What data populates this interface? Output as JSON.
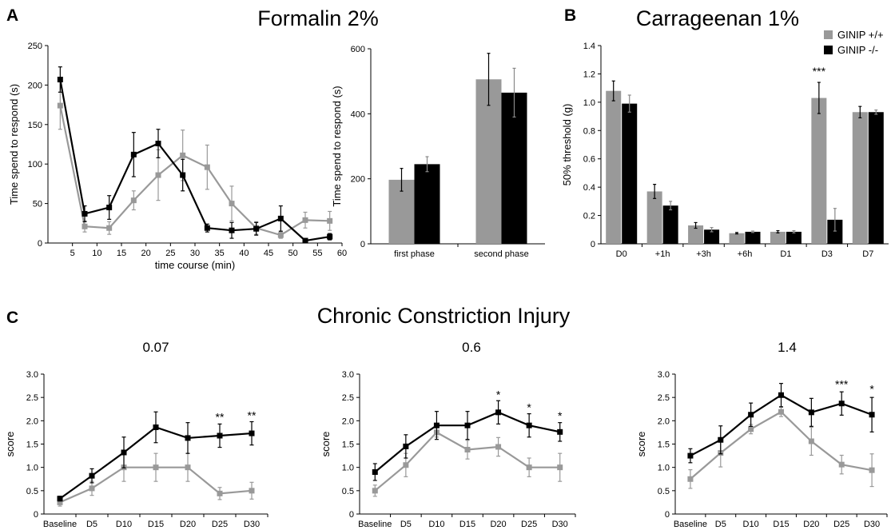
{
  "colors": {
    "wildtype": "#999999",
    "knockout": "#000000"
  },
  "panels": {
    "a_letter": "A",
    "a_title": "Formalin 2%",
    "b_letter": "B",
    "b_title": "Carrageenan 1%",
    "c_letter": "C",
    "c_title": "Chronic Constriction Injury"
  },
  "legend": [
    {
      "label": "GINIP +/+",
      "color": "#999999"
    },
    {
      "label": "GINIP -/-",
      "color": "#000000"
    }
  ],
  "chart_data": [
    {
      "id": "formalin_time",
      "type": "line",
      "xlabel": "time course (min)",
      "ylabel": "Time spend to respond (s)",
      "ylim": [
        0,
        250
      ],
      "xlim": [
        0,
        60
      ],
      "xticks": [
        5,
        10,
        15,
        20,
        25,
        30,
        35,
        40,
        45,
        50,
        55,
        60
      ],
      "yticks": [
        0,
        50,
        100,
        150,
        200,
        250
      ],
      "series": [
        {
          "name": "GINIP +/+",
          "color": "#999999",
          "marker": "square",
          "x": [
            2.5,
            7.5,
            12.5,
            17.5,
            22.5,
            27.5,
            32.5,
            37.5,
            42.5,
            47.5,
            52.5,
            57.5
          ],
          "y": [
            174,
            21,
            19,
            54,
            86,
            111,
            96,
            50,
            19,
            10,
            29,
            28
          ],
          "err": [
            30,
            7,
            8,
            12,
            32,
            32,
            28,
            22,
            8,
            4,
            10,
            12
          ]
        },
        {
          "name": "GINIP -/-",
          "color": "#000000",
          "marker": "square",
          "x": [
            2.5,
            7.5,
            12.5,
            17.5,
            22.5,
            27.5,
            32.5,
            37.5,
            42.5,
            47.5,
            52.5,
            57.5
          ],
          "y": [
            207,
            37,
            45,
            112,
            126,
            86,
            19,
            16,
            18,
            31,
            3,
            8
          ],
          "err": [
            16,
            10,
            15,
            28,
            18,
            20,
            5,
            10,
            8,
            16,
            2,
            4
          ]
        }
      ]
    },
    {
      "id": "formalin_phase",
      "type": "bar",
      "categories": [
        "first phase",
        "second phase"
      ],
      "ylabel": "Time spend to respond (s)",
      "ylim": [
        0,
        600
      ],
      "yticks": [
        0,
        200,
        400,
        600
      ],
      "series": [
        {
          "name": "GINIP +/+",
          "color": "#999999",
          "values": [
            197,
            506
          ],
          "err": [
            35,
            80
          ]
        },
        {
          "name": "GINIP -/-",
          "color": "#000000",
          "values": [
            245,
            465
          ],
          "err": [
            23,
            75
          ]
        }
      ]
    },
    {
      "id": "carrageenan",
      "type": "bar",
      "categories": [
        "D0",
        "+1h",
        "+3h",
        "+6h",
        "D1",
        "D3",
        "D7"
      ],
      "ylabel": "50% threshold (g)",
      "ylim": [
        0,
        1.4
      ],
      "yticks": [
        "0",
        "0.2",
        "0.4",
        "0.6",
        "0.8",
        "1.0",
        "1.2",
        "1.4"
      ],
      "series": [
        {
          "name": "GINIP +/+",
          "color": "#999999",
          "values": [
            1.08,
            0.37,
            0.13,
            0.075,
            0.085,
            1.03,
            0.93
          ],
          "err": [
            0.07,
            0.05,
            0.02,
            0.005,
            0.008,
            0.11,
            0.04
          ]
        },
        {
          "name": "GINIP -/-",
          "color": "#000000",
          "values": [
            0.99,
            0.27,
            0.1,
            0.085,
            0.085,
            0.17,
            0.93
          ],
          "err": [
            0.06,
            0.03,
            0.015,
            0.005,
            0.008,
            0.08,
            0.015
          ]
        }
      ],
      "annotations": [
        {
          "category": "D3",
          "text": "***",
          "y": 1.19
        }
      ]
    },
    {
      "id": "cci_007",
      "type": "line",
      "title": "0.07",
      "ylabel": "score",
      "ylim": [
        0,
        3.0
      ],
      "yticks": [
        "0",
        "0.5",
        "1.0",
        "1.5",
        "2.0",
        "2.5",
        "3.0"
      ],
      "categories": [
        "Baseline",
        "D5",
        "D10",
        "D15",
        "D20",
        "D25",
        "D30"
      ],
      "series": [
        {
          "name": "GINIP +/+",
          "color": "#999999",
          "values": [
            0.25,
            0.55,
            1.0,
            1.0,
            1.0,
            0.44,
            0.5
          ],
          "err": [
            0.08,
            0.15,
            0.3,
            0.3,
            0.3,
            0.13,
            0.18
          ]
        },
        {
          "name": "GINIP -/-",
          "color": "#000000",
          "values": [
            0.33,
            0.82,
            1.32,
            1.86,
            1.63,
            1.68,
            1.73
          ],
          "err": [
            0.05,
            0.15,
            0.33,
            0.33,
            0.33,
            0.25,
            0.25
          ]
        }
      ],
      "annotations": [
        {
          "category": "D25",
          "text": "**",
          "y": 2.0
        },
        {
          "category": "D30",
          "text": "**",
          "y": 2.03
        }
      ]
    },
    {
      "id": "cci_06",
      "type": "line",
      "title": "0.6",
      "ylabel": "score",
      "ylim": [
        0,
        3.0
      ],
      "yticks": [
        "0",
        "0.5",
        "1.0",
        "1.5",
        "2.0",
        "2.5",
        "3.0"
      ],
      "categories": [
        "Baseline",
        "D5",
        "D10",
        "D15",
        "D20",
        "D25",
        "D30"
      ],
      "series": [
        {
          "name": "GINIP +/+",
          "color": "#999999",
          "values": [
            0.5,
            1.05,
            1.75,
            1.38,
            1.44,
            1.0,
            1.0
          ],
          "err": [
            0.12,
            0.25,
            0.1,
            0.2,
            0.2,
            0.2,
            0.3
          ]
        },
        {
          "name": "GINIP -/-",
          "color": "#000000",
          "values": [
            0.9,
            1.45,
            1.9,
            1.9,
            2.18,
            1.9,
            1.76
          ],
          "err": [
            0.18,
            0.25,
            0.3,
            0.3,
            0.25,
            0.25,
            0.2
          ]
        }
      ],
      "annotations": [
        {
          "category": "D20",
          "text": "*",
          "y": 2.48
        },
        {
          "category": "D25",
          "text": "*",
          "y": 2.2
        },
        {
          "category": "D30",
          "text": "*",
          "y": 2.02
        }
      ]
    },
    {
      "id": "cci_14",
      "type": "line",
      "title": "1.4",
      "ylabel": "score",
      "ylim": [
        0,
        3.0
      ],
      "yticks": [
        "0",
        "0.5",
        "1.0",
        "1.5",
        "2.0",
        "2.5",
        "3.0"
      ],
      "categories": [
        "Baseline",
        "D5",
        "D10",
        "D15",
        "D20",
        "D25",
        "D30"
      ],
      "series": [
        {
          "name": "GINIP +/+",
          "color": "#999999",
          "values": [
            0.75,
            1.31,
            1.82,
            2.19,
            1.56,
            1.06,
            0.94
          ],
          "err": [
            0.2,
            0.3,
            0.1,
            0.1,
            0.3,
            0.2,
            0.35
          ]
        },
        {
          "name": "GINIP -/-",
          "color": "#000000",
          "values": [
            1.25,
            1.59,
            2.13,
            2.55,
            2.18,
            2.37,
            2.13
          ],
          "err": [
            0.15,
            0.3,
            0.25,
            0.25,
            0.3,
            0.25,
            0.37
          ]
        }
      ],
      "annotations": [
        {
          "category": "D25",
          "text": "***",
          "y": 2.7
        },
        {
          "category": "D30",
          "text": "*",
          "y": 2.6
        }
      ]
    }
  ]
}
